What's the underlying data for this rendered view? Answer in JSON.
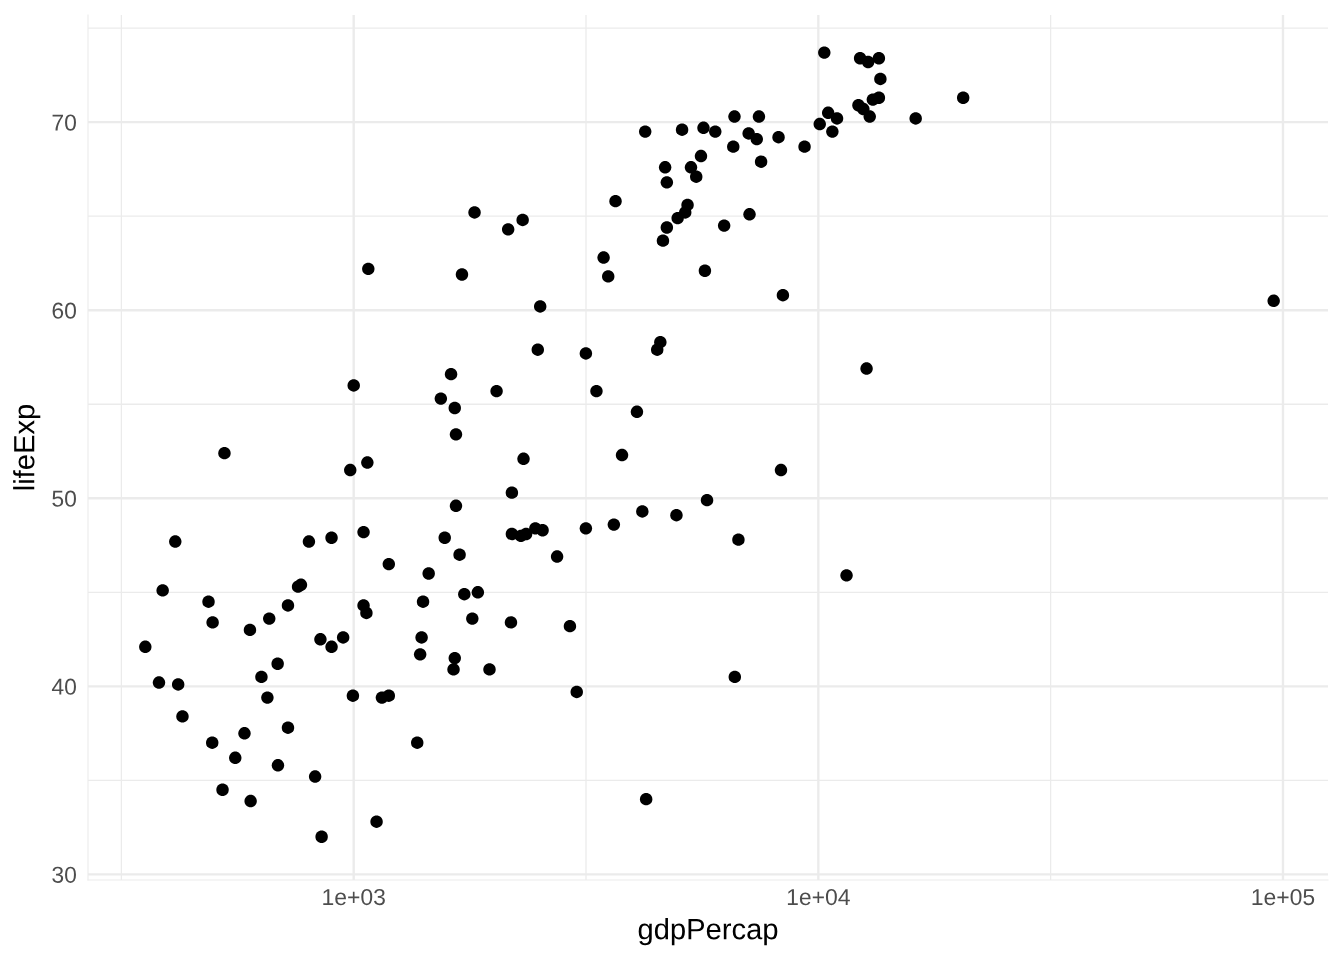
{
  "chart_data": {
    "type": "scatter",
    "xlabel": "gdpPercap",
    "ylabel": "lifeExp",
    "log": "x",
    "marker": "circle",
    "grid": true,
    "xlim": [
      268,
      125000
    ],
    "ylim": [
      29.7,
      75.7
    ],
    "xticks": [
      {
        "value": 316.2,
        "label": null
      },
      {
        "value": 1000,
        "label": "1e+03"
      },
      {
        "value": 3162,
        "label": null
      },
      {
        "value": 10000,
        "label": "1e+04"
      },
      {
        "value": 31620,
        "label": null
      },
      {
        "value": 100000,
        "label": "1e+05"
      }
    ],
    "yticks": [
      30,
      {
        "value": 35,
        "label": null
      },
      40,
      {
        "value": 45,
        "label": null
      },
      50,
      {
        "value": 55,
        "label": null
      },
      60,
      {
        "value": 65,
        "label": null
      },
      70,
      {
        "value": 75,
        "label": null
      }
    ],
    "series": [
      {
        "color": "#000000",
        "x": [
          527,
          983,
          1070,
          1660,
          413,
          801,
          896,
          1050,
          1570,
          1690,
          1190,
          1450,
          388,
          487,
          497,
          598,
          658,
          722,
          770,
          759,
          1050,
          1065,
          1410,
          1730,
          1850,
          1800,
          356,
          848,
          896,
          949,
          1400,
          1390,
          1650,
          1640,
          1960,
          686,
          633,
          381,
          419,
          652,
          996,
          1150,
          1190,
          428,
          496,
          582,
          722,
          1370,
          556,
          687,
          826,
          522,
          600,
          1120,
          853,
          1820,
          1075,
          1710,
          1000,
          1620,
          1540,
          1650,
          1660,
          2030,
          10300,
          10500,
          10070,
          10720,
          4240,
          5090,
          5660,
          6000,
          6600,
          7450,
          7080,
          7370,
          8210,
          9340,
          6560,
          7530,
          5590,
          4680,
          5320,
          5460,
          4720,
          3660,
          5230,
          5170,
          4980,
          4720,
          4630,
          7110,
          6270,
          2310,
          2150,
          3450,
          3530,
          5700,
          8390,
          2520,
          2490,
          3160,
          4570,
          4500,
          3330,
          4070,
          3780,
          2320,
          8310,
          2190,
          5760,
          4180,
          4950,
          3160,
          3630,
          6730,
          2190,
          2290,
          2350,
          2460,
          2550,
          2740,
          2180,
          2920,
          6610,
          3020,
          4260,
          12300,
          12800,
          13500,
          13600,
          20500,
          13500,
          13100,
          12200,
          12500,
          12900,
          10970,
          16200,
          95500,
          12700,
          11500
        ],
        "values": [
          52.4,
          51.5,
          51.9,
          49.6,
          47.7,
          47.7,
          47.9,
          48.2,
          47.9,
          47.0,
          46.5,
          46.0,
          45.1,
          44.5,
          43.4,
          43.0,
          43.6,
          44.3,
          45.4,
          45.3,
          44.3,
          43.9,
          44.5,
          44.9,
          45.0,
          43.6,
          42.1,
          42.5,
          42.1,
          42.6,
          42.6,
          41.7,
          41.5,
          40.9,
          40.9,
          41.2,
          40.5,
          40.2,
          40.1,
          39.4,
          39.5,
          39.4,
          39.5,
          38.4,
          37.0,
          37.5,
          37.8,
          37.0,
          36.2,
          35.8,
          35.2,
          34.5,
          33.9,
          32.8,
          32.0,
          65.2,
          62.2,
          61.9,
          56.0,
          56.6,
          55.3,
          54.8,
          53.4,
          55.7,
          73.7,
          70.5,
          69.9,
          69.5,
          69.5,
          69.6,
          69.7,
          69.5,
          70.3,
          70.3,
          69.4,
          69.1,
          69.2,
          68.7,
          68.7,
          67.9,
          68.2,
          67.6,
          67.6,
          67.1,
          66.8,
          65.8,
          65.6,
          65.2,
          64.9,
          64.4,
          63.7,
          65.1,
          64.5,
          64.8,
          64.3,
          62.8,
          61.8,
          62.1,
          60.8,
          60.2,
          57.9,
          57.7,
          58.3,
          57.9,
          55.7,
          54.6,
          52.3,
          52.1,
          51.5,
          50.3,
          49.9,
          49.3,
          49.1,
          48.4,
          48.6,
          47.8,
          48.1,
          48.0,
          48.1,
          48.4,
          48.3,
          46.9,
          43.4,
          43.2,
          40.5,
          39.7,
          34.0,
          73.4,
          73.2,
          73.4,
          72.3,
          71.3,
          71.3,
          71.2,
          70.9,
          70.7,
          70.3,
          70.2,
          70.2,
          60.5,
          56.9,
          45.9
        ]
      }
    ]
  }
}
